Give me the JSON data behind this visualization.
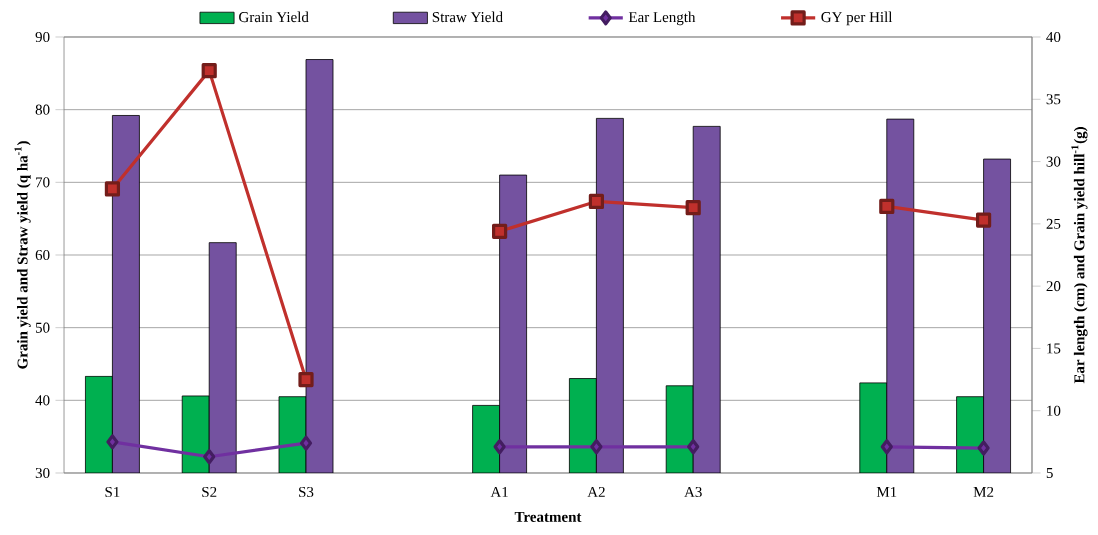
{
  "chart_data": {
    "type": "bar",
    "categories": [
      "S1",
      "S2",
      "S3",
      null,
      "A1",
      "A2",
      "A3",
      null,
      "M1",
      "M2"
    ],
    "xlabel": "Treatment",
    "ylabel": "Grain yield and Straw yield (q ha$^{-1}$)",
    "y2label": "Ear length (cm) and Grain yield hill$^{-1}$(g)",
    "series": [
      {
        "name": "Grain Yield",
        "type": "bar",
        "color": "#00b050",
        "values": [
          43.3,
          40.6,
          40.5,
          null,
          39.3,
          43.0,
          42.0,
          null,
          42.4,
          40.5
        ]
      },
      {
        "name": "Straw Yield",
        "type": "bar",
        "color": "#7452a0",
        "values": [
          79.2,
          61.7,
          86.9,
          null,
          71.0,
          78.8,
          77.7,
          null,
          78.7,
          73.2
        ]
      },
      {
        "name": "Ear Length",
        "type": "line",
        "axis": "y2",
        "marker": "diamond",
        "color": "#7030a0",
        "values": [
          7.5,
          6.3,
          7.4,
          null,
          7.1,
          7.1,
          7.1,
          null,
          7.1,
          7.0
        ]
      },
      {
        "name": "GY per Hill",
        "type": "line",
        "axis": "y2",
        "marker": "square",
        "color": "#c0302c",
        "values": [
          27.8,
          37.3,
          12.5,
          null,
          24.4,
          26.8,
          26.3,
          null,
          26.4,
          25.3
        ]
      }
    ],
    "ylim": [
      30,
      90
    ],
    "yticks": [
      30,
      40,
      50,
      60,
      70,
      80,
      90
    ],
    "y2lim": [
      5,
      40
    ],
    "y2ticks": [
      5,
      10,
      15,
      20,
      25,
      30,
      35,
      40
    ],
    "grid": "y",
    "legend": "top",
    "line_style": "solid"
  }
}
